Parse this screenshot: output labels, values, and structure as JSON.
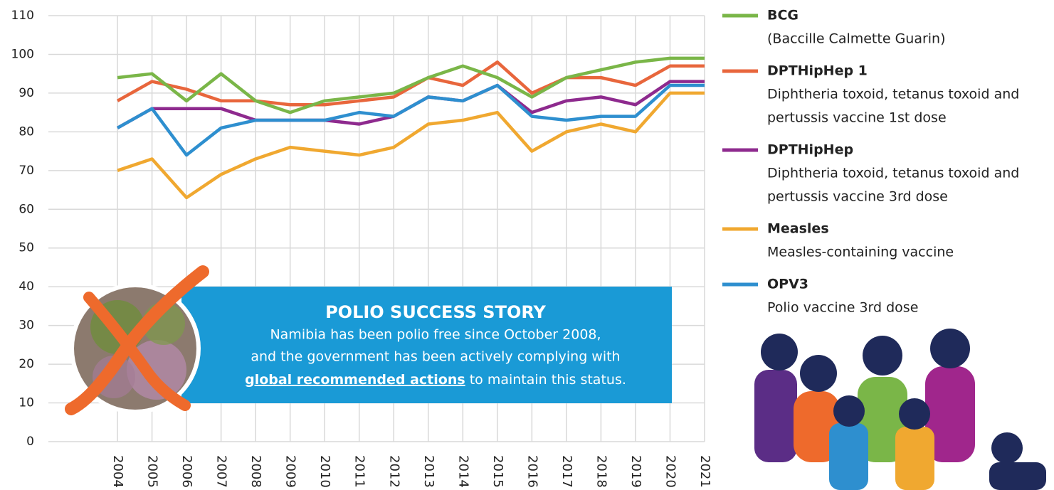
{
  "chart_data": {
    "type": "line",
    "x": [
      2004,
      2005,
      2006,
      2007,
      2008,
      2009,
      2010,
      2011,
      2012,
      2013,
      2014,
      2015,
      2016,
      2017,
      2018,
      2019,
      2020,
      2021
    ],
    "xlim": [
      2002,
      2021
    ],
    "xticks": [
      2004,
      2005,
      2006,
      2007,
      2008,
      2009,
      2010,
      2011,
      2012,
      2013,
      2014,
      2015,
      2016,
      2017,
      2018,
      2019,
      2020,
      2021
    ],
    "ylim": [
      0,
      110
    ],
    "yticks": [
      0,
      10,
      20,
      30,
      40,
      50,
      60,
      70,
      80,
      90,
      100,
      110
    ],
    "grid": true,
    "series": [
      {
        "name": "BCG",
        "description": "(Baccille Calmette Guarin)",
        "color": "#7ab648",
        "values": [
          94,
          95,
          88,
          95,
          88,
          85,
          88,
          89,
          90,
          94,
          97,
          94,
          89,
          94,
          96,
          98,
          99,
          99
        ]
      },
      {
        "name": "DPTHipHep 1",
        "description": [
          "Diphtheria toxoid, tetanus toxoid and",
          "pertussis vaccine 1st dose"
        ],
        "color": "#e8663c",
        "values": [
          88,
          93,
          91,
          88,
          88,
          87,
          87,
          88,
          89,
          94,
          92,
          98,
          90,
          94,
          94,
          92,
          97,
          97
        ]
      },
      {
        "name": "DPTHipHep",
        "description": [
          "Diphtheria toxoid, tetanus toxoid and",
          "pertussis vaccine 3rd dose"
        ],
        "color": "#8e2a8e",
        "values": [
          81,
          86,
          86,
          86,
          83,
          83,
          83,
          82,
          84,
          89,
          88,
          92,
          85,
          88,
          89,
          87,
          93,
          93
        ]
      },
      {
        "name": "Measles",
        "description": "Measles-containing vaccine",
        "color": "#f0a830",
        "values": [
          70,
          73,
          63,
          69,
          73,
          76,
          75,
          74,
          76,
          82,
          83,
          85,
          75,
          80,
          82,
          80,
          90,
          90
        ]
      },
      {
        "name": "OPV3",
        "description": "Polio vaccine 3rd dose",
        "color": "#2e8fcf",
        "values": [
          81,
          86,
          74,
          81,
          83,
          83,
          83,
          85,
          84,
          89,
          88,
          92,
          84,
          83,
          84,
          84,
          92,
          92
        ]
      }
    ]
  },
  "callout": {
    "title": "POLIO SUCCESS STORY",
    "lines": [
      "Namibia has been polio free since October 2008,",
      "and the government has been actively complying with"
    ],
    "link": "global recommended actions",
    "after_link": " to maintain this status."
  }
}
